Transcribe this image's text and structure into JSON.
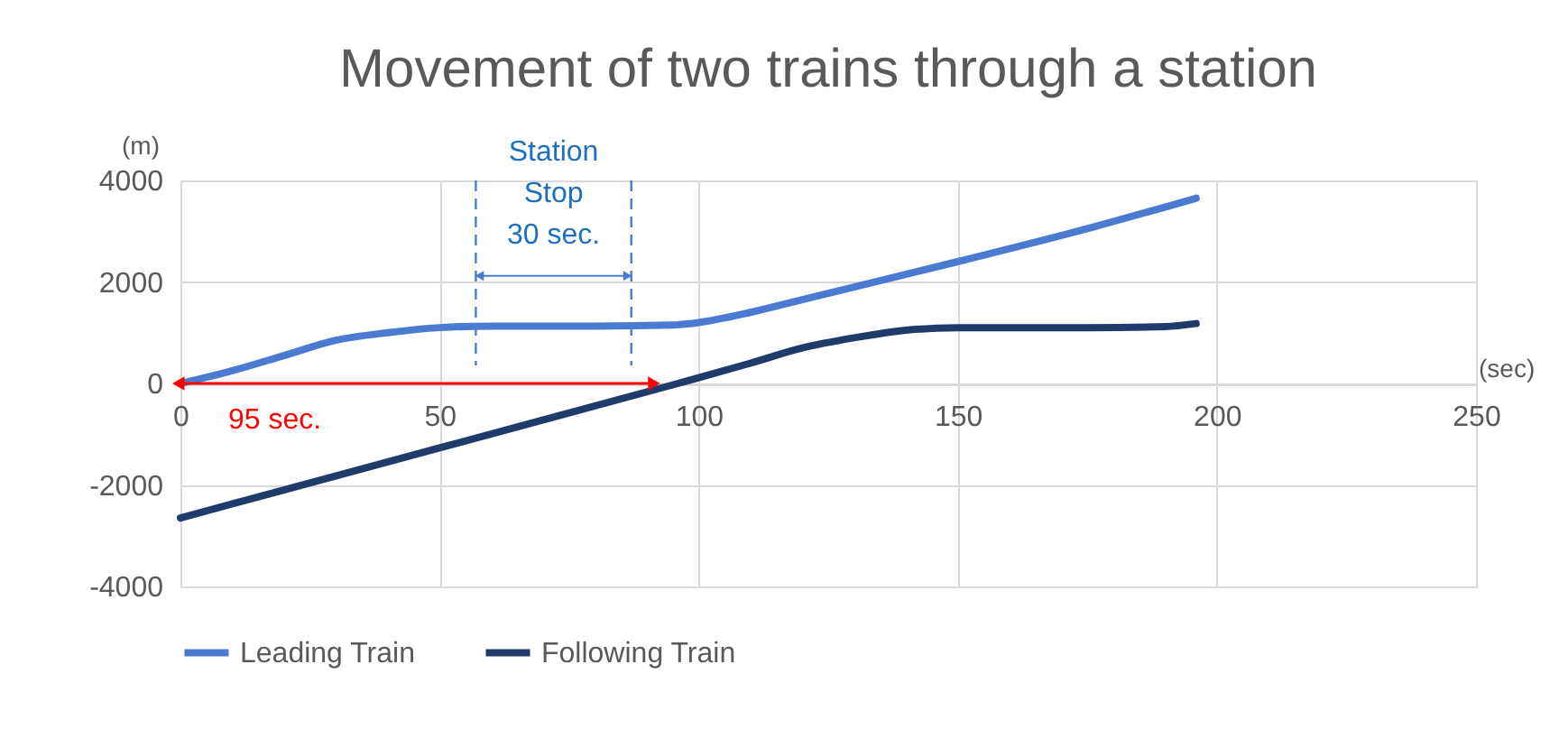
{
  "chart_data": {
    "type": "line",
    "title": "Movement of two trains through a station",
    "xlabel": "(sec)",
    "ylabel": "(m)",
    "xlim": [
      0,
      250
    ],
    "xticks": [
      0,
      50,
      100,
      150,
      200,
      250
    ],
    "ylim": [
      -4000,
      4000
    ],
    "yticks": [
      -4000,
      -2000,
      0,
      2000,
      4000
    ],
    "grid": true,
    "legend": "bottom",
    "line_style": "solid",
    "marker": "none",
    "series": [
      {
        "name": "Leading Train",
        "color": "#4a7bd0",
        "x": [
          0,
          10,
          20,
          30,
          40,
          50,
          60,
          80,
          95,
          100,
          110,
          120,
          130,
          150,
          175,
          196
        ],
        "values": [
          0,
          250,
          550,
          850,
          1000,
          1100,
          1130,
          1130,
          1150,
          1200,
          1400,
          1650,
          1900,
          2400,
          3050,
          3650
        ]
      },
      {
        "name": "Following Train",
        "color": "#1f3a6b",
        "x": [
          0,
          50,
          96,
          110,
          120,
          130,
          140,
          150,
          175,
          190,
          196
        ],
        "values": [
          -2650,
          -1270,
          0,
          400,
          700,
          900,
          1050,
          1100,
          1100,
          1120,
          1180
        ]
      },
      {
        "color": "#ff0000",
        "x": [
          0,
          91
        ],
        "values": [
          0,
          0
        ],
        "marker": "triangle"
      }
    ],
    "ref_lines": [
      {
        "axis": "x",
        "value": 57,
        "color": "#4a7bd0",
        "line_style": "dashed"
      },
      {
        "axis": "x",
        "value": 87,
        "color": "#4a7bd0",
        "line_style": "dashed"
      }
    ],
    "annotations": [
      "95 sec.",
      "Station\nStop\n30 sec."
    ]
  }
}
